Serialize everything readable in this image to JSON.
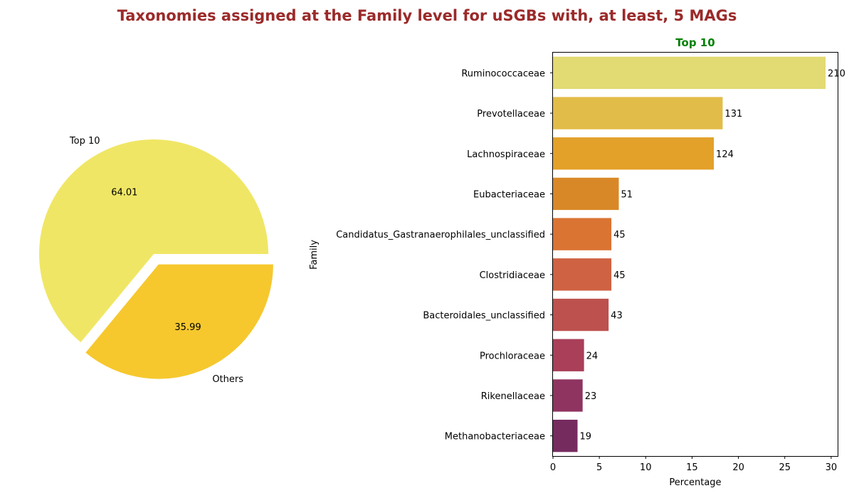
{
  "figure": {
    "title": "Taxonomies assigned at the Family level for uSGBs with, at least, 5 MAGs",
    "title_color": "#9b2a2a"
  },
  "chart_data": [
    {
      "type": "pie",
      "labels": [
        "Top 10",
        "Others"
      ],
      "values": [
        64.01,
        35.99
      ],
      "value_labels": [
        "64.01",
        "35.99"
      ],
      "colors": [
        "#f0e665",
        "#f6c82e"
      ],
      "exploded": "Others"
    },
    {
      "type": "bar",
      "orientation": "horizontal",
      "title": "Top 10",
      "title_color": "#008000",
      "xlabel": "Percentage",
      "ylabel": "Family",
      "xlim": [
        0,
        30.7
      ],
      "xticks": [
        0,
        5,
        10,
        15,
        20,
        25,
        30
      ],
      "categories": [
        "Ruminococcaceae",
        "Prevotellaceae",
        "Lachnospiraceae",
        "Eubacteriaceae",
        "Candidatus_Gastranaerophilales_unclassified",
        "Clostridiaceae",
        "Bacteroidales_unclassified",
        "Prochloraceae",
        "Rikenellaceae",
        "Methanobacteriaceae"
      ],
      "values": [
        29.4,
        18.3,
        17.35,
        7.1,
        6.3,
        6.3,
        6.0,
        3.35,
        3.2,
        2.65
      ],
      "data_labels": [
        "210",
        "131",
        "124",
        "51",
        "45",
        "45",
        "43",
        "24",
        "23",
        "19"
      ],
      "colors": [
        "#e2da72",
        "#e2bc48",
        "#e3a12a",
        "#d98828",
        "#da7433",
        "#cf6242",
        "#bd514e",
        "#a93f59",
        "#8f3460",
        "#762b5f"
      ]
    }
  ]
}
